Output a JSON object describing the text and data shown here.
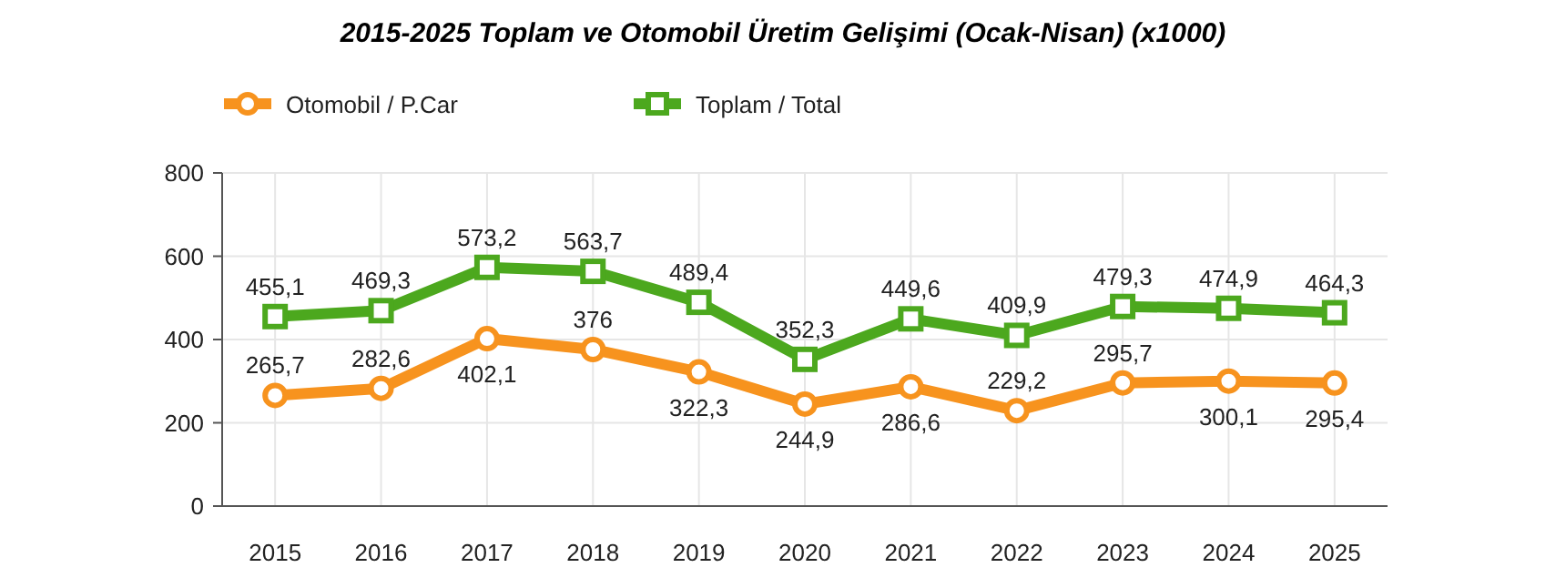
{
  "chart_data": {
    "type": "line",
    "title": "2015-2025 Toplam ve Otomobil Üretim Gelişimi (Ocak-Nisan) (x1000)",
    "categories": [
      "2015",
      "2016",
      "2017",
      "2018",
      "2019",
      "2020",
      "2021",
      "2022",
      "2023",
      "2024",
      "2025"
    ],
    "series": [
      {
        "name": "Otomobil / P.Car",
        "color": "#f7931e",
        "marker": "circle",
        "values": [
          265.7,
          282.6,
          402.1,
          376,
          322.3,
          244.9,
          286.6,
          229.2,
          295.7,
          300.1,
          295.4
        ],
        "value_labels": [
          "265,7",
          "282,6",
          "402,1",
          "376",
          "322,3",
          "244,9",
          "286,6",
          "229,2",
          "295,7",
          "300,1",
          "295,4"
        ]
      },
      {
        "name": "Toplam / Total",
        "color": "#4ca81e",
        "marker": "square",
        "values": [
          455.1,
          469.3,
          573.2,
          563.7,
          489.4,
          352.3,
          449.6,
          409.9,
          479.3,
          474.9,
          464.3
        ],
        "value_labels": [
          "455,1",
          "469,3",
          "573,2",
          "563,7",
          "489,4",
          "352,3",
          "449,6",
          "409,9",
          "479,3",
          "474,9",
          "464,3"
        ]
      }
    ],
    "ylim": [
      0,
      800
    ],
    "yticks": [
      0,
      200,
      400,
      600,
      800
    ],
    "grid": true,
    "legend": "top left",
    "line_style": "solid"
  }
}
